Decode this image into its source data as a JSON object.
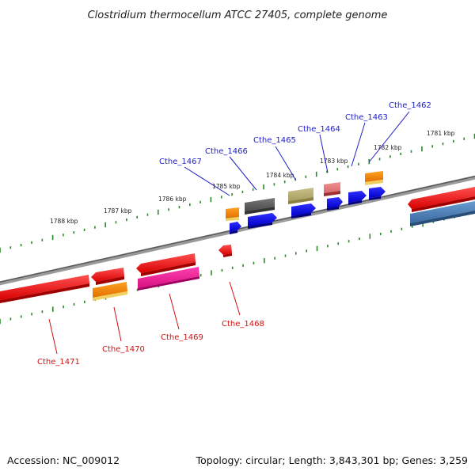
{
  "title": "Clostridium thermocellum ATCC 27405, complete genome",
  "footer": {
    "accession": "Accession: NC_009012",
    "summary": "Topology: circular; Length: 3,843,301 bp; Genes: 3,259"
  },
  "scale_labels": [
    "1781 kbp",
    "1782 kbp",
    "1783 kbp",
    "1784 kbp",
    "1785 kbp",
    "1786 kbp",
    "1787 kbp",
    "1788 kbp"
  ],
  "top_labels": [
    "Cthe_1462",
    "Cthe_1463",
    "Cthe_1464",
    "Cthe_1465",
    "Cthe_1466",
    "Cthe_1467"
  ],
  "bottom_labels": [
    "Cthe_1468",
    "Cthe_1469",
    "Cthe_1470",
    "Cthe_1471"
  ],
  "colors": {
    "backbone": "#6e6e6e",
    "tick": "#2a8a2a",
    "top_label": "#2020c8",
    "bottom_label": "#d01010"
  }
}
